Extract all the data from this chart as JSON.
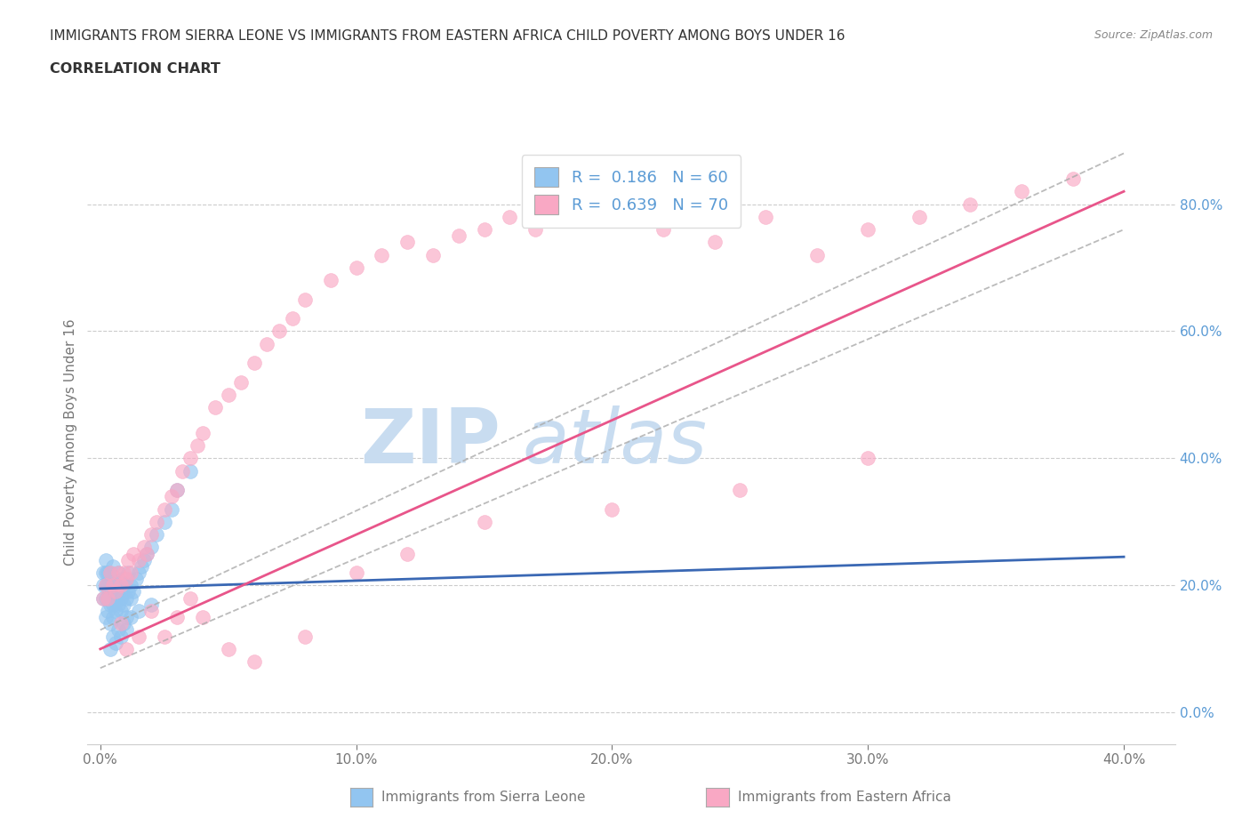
{
  "title": "IMMIGRANTS FROM SIERRA LEONE VS IMMIGRANTS FROM EASTERN AFRICA CHILD POVERTY AMONG BOYS UNDER 16",
  "subtitle": "CORRELATION CHART",
  "source": "Source: ZipAtlas.com",
  "ylabel": "Child Poverty Among Boys Under 16",
  "xlim": [
    -0.005,
    0.42
  ],
  "ylim": [
    -0.05,
    0.9
  ],
  "x_ticks": [
    0.0,
    0.1,
    0.2,
    0.3,
    0.4
  ],
  "x_tick_labels": [
    "0.0%",
    "10.0%",
    "20.0%",
    "30.0%",
    "40.0%"
  ],
  "y_ticks_right": [
    0.0,
    0.2,
    0.4,
    0.6,
    0.8
  ],
  "y_tick_labels_right": [
    "0.0%",
    "20.0%",
    "40.0%",
    "60.0%",
    "80.0%"
  ],
  "legend_r1": "R =  0.186   N = 60",
  "legend_r2": "R =  0.639   N = 70",
  "color_blue": "#92C5F0",
  "color_pink": "#F9A8C4",
  "color_line_blue": "#3A68B4",
  "color_line_pink": "#E8558A",
  "watermark_color": "#C8DCF0",
  "grid_color": "#CCCCCC",
  "title_color": "#333333",
  "axis_color": "#777777",
  "tick_color": "#777777",
  "right_tick_color": "#5B9BD5",
  "source_color": "#888888",
  "sierra_leone_x": [
    0.001,
    0.001,
    0.001,
    0.002,
    0.002,
    0.002,
    0.002,
    0.002,
    0.003,
    0.003,
    0.003,
    0.003,
    0.004,
    0.004,
    0.004,
    0.004,
    0.005,
    0.005,
    0.005,
    0.005,
    0.006,
    0.006,
    0.006,
    0.007,
    0.007,
    0.007,
    0.008,
    0.008,
    0.008,
    0.009,
    0.009,
    0.01,
    0.01,
    0.01,
    0.011,
    0.011,
    0.012,
    0.012,
    0.013,
    0.014,
    0.015,
    0.016,
    0.017,
    0.018,
    0.02,
    0.022,
    0.025,
    0.028,
    0.03,
    0.035,
    0.004,
    0.005,
    0.006,
    0.007,
    0.008,
    0.009,
    0.01,
    0.012,
    0.015,
    0.02
  ],
  "sierra_leone_y": [
    0.18,
    0.2,
    0.22,
    0.15,
    0.18,
    0.2,
    0.22,
    0.24,
    0.16,
    0.18,
    0.2,
    0.22,
    0.14,
    0.17,
    0.19,
    0.22,
    0.15,
    0.17,
    0.2,
    0.23,
    0.16,
    0.18,
    0.21,
    0.17,
    0.19,
    0.22,
    0.16,
    0.18,
    0.21,
    0.17,
    0.2,
    0.15,
    0.18,
    0.21,
    0.19,
    0.22,
    0.18,
    0.2,
    0.19,
    0.21,
    0.22,
    0.23,
    0.24,
    0.25,
    0.26,
    0.28,
    0.3,
    0.32,
    0.35,
    0.38,
    0.1,
    0.12,
    0.11,
    0.13,
    0.12,
    0.14,
    0.13,
    0.15,
    0.16,
    0.17
  ],
  "eastern_africa_x": [
    0.001,
    0.002,
    0.003,
    0.004,
    0.005,
    0.006,
    0.007,
    0.008,
    0.009,
    0.01,
    0.011,
    0.012,
    0.013,
    0.015,
    0.017,
    0.018,
    0.02,
    0.022,
    0.025,
    0.028,
    0.03,
    0.032,
    0.035,
    0.038,
    0.04,
    0.045,
    0.05,
    0.055,
    0.06,
    0.065,
    0.07,
    0.075,
    0.08,
    0.09,
    0.1,
    0.11,
    0.12,
    0.13,
    0.14,
    0.15,
    0.16,
    0.17,
    0.18,
    0.2,
    0.22,
    0.24,
    0.26,
    0.28,
    0.3,
    0.32,
    0.34,
    0.36,
    0.38,
    0.008,
    0.01,
    0.015,
    0.02,
    0.025,
    0.03,
    0.035,
    0.04,
    0.05,
    0.06,
    0.08,
    0.1,
    0.12,
    0.15,
    0.2,
    0.25,
    0.3
  ],
  "eastern_africa_y": [
    0.18,
    0.2,
    0.18,
    0.22,
    0.2,
    0.19,
    0.22,
    0.2,
    0.22,
    0.21,
    0.24,
    0.22,
    0.25,
    0.24,
    0.26,
    0.25,
    0.28,
    0.3,
    0.32,
    0.34,
    0.35,
    0.38,
    0.4,
    0.42,
    0.44,
    0.48,
    0.5,
    0.52,
    0.55,
    0.58,
    0.6,
    0.62,
    0.65,
    0.68,
    0.7,
    0.72,
    0.74,
    0.72,
    0.75,
    0.76,
    0.78,
    0.76,
    0.8,
    0.78,
    0.76,
    0.74,
    0.78,
    0.72,
    0.76,
    0.78,
    0.8,
    0.82,
    0.84,
    0.14,
    0.1,
    0.12,
    0.16,
    0.12,
    0.15,
    0.18,
    0.15,
    0.1,
    0.08,
    0.12,
    0.22,
    0.25,
    0.3,
    0.32,
    0.35,
    0.4
  ],
  "sl_trendline": [
    0.0,
    0.4,
    0.195,
    0.245
  ],
  "ea_trendline": [
    0.0,
    0.4,
    0.1,
    0.82
  ],
  "ea_dashed_upper": [
    0.0,
    0.4,
    0.13,
    0.88
  ],
  "ea_dashed_lower": [
    0.0,
    0.4,
    0.07,
    0.76
  ]
}
